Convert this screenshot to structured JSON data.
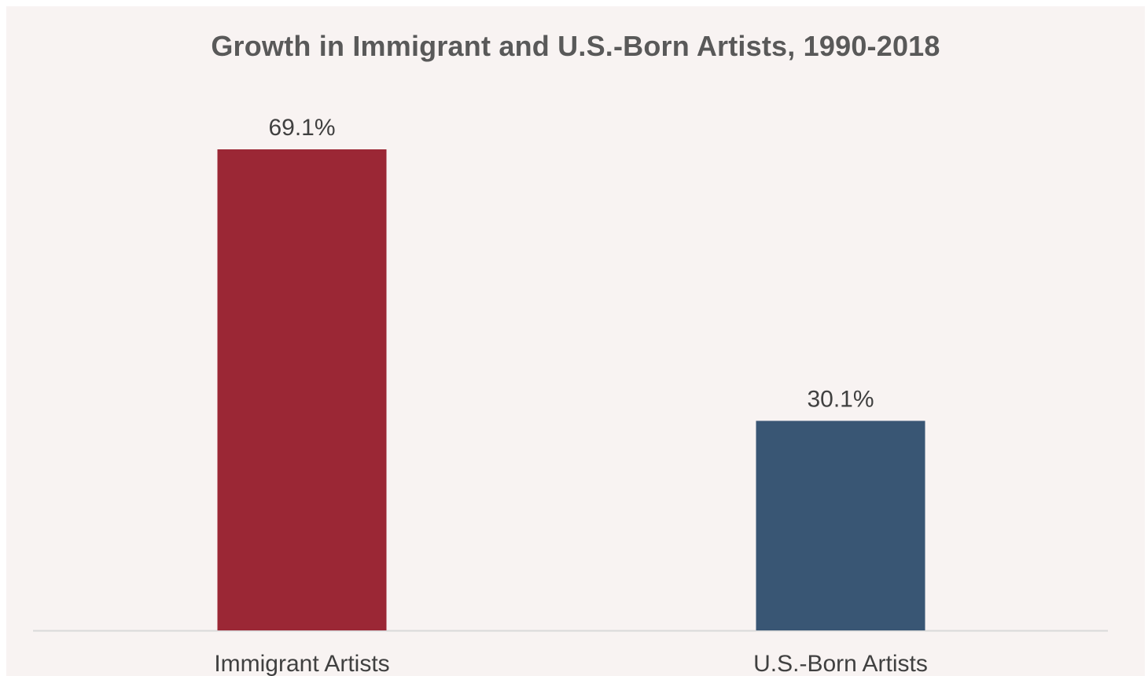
{
  "chart_data": {
    "type": "bar",
    "title": "Growth in Immigrant and U.S.-Born Artists, 1990-2018",
    "categories": [
      "Immigrant Artists",
      "U.S.-Born Artists"
    ],
    "values": [
      69.1,
      30.1
    ],
    "value_labels": [
      "69.1%",
      "30.1%"
    ],
    "bar_colors": [
      "#9b2735",
      "#395674"
    ],
    "xlabel": "",
    "ylabel": "",
    "ylim": [
      0,
      69.1
    ],
    "grid": false,
    "legend": "none"
  },
  "colors": {
    "background": "#f8f3f2",
    "axis_line": "#d9d9d9",
    "text": "#404040",
    "title_text": "#595959"
  }
}
